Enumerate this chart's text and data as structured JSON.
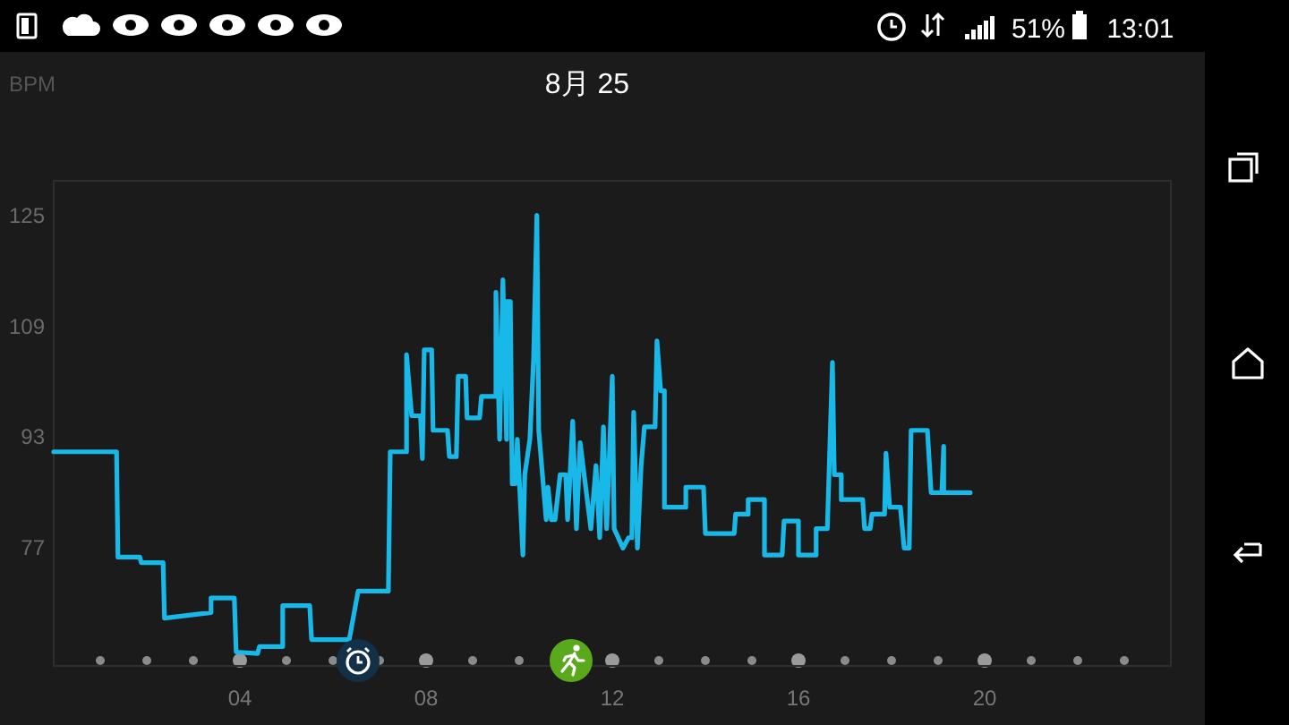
{
  "chart_data": {
    "type": "line",
    "title": "8月 25",
    "ylabel": "BPM",
    "xticks": [
      {
        "value": 4,
        "label": "04"
      },
      {
        "value": 8,
        "label": "08"
      },
      {
        "value": 12,
        "label": "12"
      },
      {
        "value": 16,
        "label": "16"
      },
      {
        "value": 20,
        "label": "20"
      }
    ],
    "xlim": [
      0,
      24
    ],
    "ylim": [
      60,
      130
    ],
    "yticks": [
      77,
      93,
      109,
      125
    ],
    "marker": "none",
    "line_style": "solid",
    "annotations": [
      "51%",
      "13:01"
    ],
    "series": [
      {
        "color": "#18b9e8",
        "x": [
          0,
          1.35,
          1.38,
          1.85,
          1.88,
          2.35,
          2.38,
          3.38,
          3.38,
          3.88,
          3.92,
          4.38,
          4.42,
          4.92,
          4.92,
          5.5,
          5.54,
          6.35,
          6.54,
          7.19,
          7.23,
          7.58,
          7.58,
          7.69,
          7.88,
          7.92,
          7.96,
          8.12,
          8.15,
          8.46,
          8.5,
          8.65,
          8.69,
          8.85,
          8.88,
          9.15,
          9.19,
          9.5,
          9.5,
          9.58,
          9.65,
          9.73,
          9.73,
          9.81,
          9.85,
          9.92,
          9.96,
          10.08,
          10.12,
          10.23,
          10.31,
          10.38,
          10.42,
          10.58,
          10.62,
          10.69,
          10.77,
          10.88,
          11.0,
          11.04,
          11.08,
          11.15,
          11.23,
          11.31,
          11.54,
          11.65,
          11.73,
          11.81,
          11.88,
          12.0,
          12.04,
          12.23,
          12.35,
          12.42,
          12.46,
          12.54,
          12.62,
          12.69,
          12.92,
          12.96,
          13.04,
          13.12,
          13.12,
          13.58,
          13.58,
          13.96,
          14.0,
          14.62,
          14.65,
          14.92,
          14.92,
          15.27,
          15.27,
          15.65,
          15.69,
          16.0,
          16.0,
          16.38,
          16.38,
          16.62,
          16.73,
          16.77,
          16.92,
          16.92,
          17.38,
          17.42,
          17.54,
          17.58,
          17.85,
          17.88,
          17.96,
          18.19,
          18.27,
          18.38,
          18.42,
          18.77,
          18.85,
          19.08,
          19.12,
          19.12,
          19.69
        ],
        "values": [
          90.9,
          90.9,
          75.7,
          75.7,
          74.9,
          74.9,
          66.9,
          67.7,
          69.8,
          69.8,
          62.0,
          61.8,
          62.8,
          62.8,
          68.7,
          68.7,
          63.8,
          63.8,
          70.8,
          70.8,
          90.9,
          90.9,
          104.9,
          96.1,
          96.1,
          89.9,
          105.6,
          105.6,
          94.0,
          94.0,
          90.2,
          90.2,
          101.8,
          101.8,
          95.8,
          95.8,
          98.9,
          98.9,
          113.9,
          92.7,
          115.7,
          92.7,
          112.6,
          112.6,
          86.3,
          86.3,
          92.7,
          76.0,
          87.6,
          92.7,
          104.4,
          125.0,
          94.0,
          81.1,
          85.8,
          81.1,
          81.1,
          87.6,
          87.6,
          81.1,
          85.8,
          95.3,
          79.8,
          92.2,
          79.8,
          88.9,
          78.5,
          94.5,
          79.8,
          101.8,
          79.8,
          77.0,
          78.5,
          78.5,
          96.6,
          77.0,
          88.9,
          94.5,
          94.5,
          106.9,
          99.7,
          99.7,
          82.9,
          82.9,
          85.8,
          85.8,
          79.1,
          79.1,
          81.9,
          81.9,
          84.0,
          84.0,
          76.0,
          76.0,
          80.9,
          80.9,
          76.0,
          76.0,
          79.8,
          79.8,
          103.8,
          87.6,
          87.6,
          84.0,
          84.0,
          79.8,
          79.8,
          81.9,
          81.9,
          90.7,
          82.9,
          82.9,
          77.0,
          77.0,
          94.0,
          94.0,
          85.0,
          85.0,
          91.7,
          85.0,
          85.0
        ]
      }
    ]
  }
}
